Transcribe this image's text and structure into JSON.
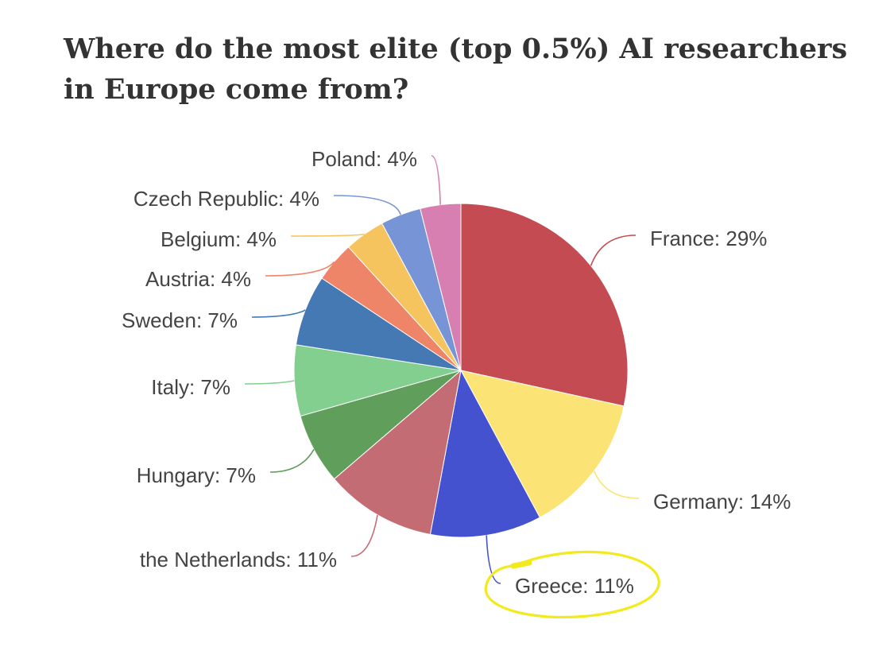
{
  "chart_data": {
    "type": "pie",
    "title": "Where do the most elite (top 0.5%) AI researchers in Europe come from?",
    "slices": [
      {
        "label": "France",
        "value": 29,
        "display": "France: 29%",
        "color": "#c44b51"
      },
      {
        "label": "Germany",
        "value": 14,
        "display": "Germany: 14%",
        "color": "#fbe475"
      },
      {
        "label": "Greece",
        "value": 11,
        "display": "Greece: 11%",
        "color": "#4452cf",
        "highlighted": true
      },
      {
        "label": "the Netherlands",
        "value": 11,
        "display": "the Netherlands: 11%",
        "color": "#c46c73"
      },
      {
        "label": "Hungary",
        "value": 7,
        "display": "Hungary: 7%",
        "color": "#609e5b"
      },
      {
        "label": "Italy",
        "value": 7,
        "display": "Italy: 7%",
        "color": "#82cf8f"
      },
      {
        "label": "Sweden",
        "value": 7,
        "display": "Sweden: 7%",
        "color": "#4479b4"
      },
      {
        "label": "Austria",
        "value": 4,
        "display": "Austria: 4%",
        "color": "#ee8468"
      },
      {
        "label": "Belgium",
        "value": 4,
        "display": "Belgium: 4%",
        "color": "#f6c45f"
      },
      {
        "label": "Czech Republic",
        "value": 4,
        "display": "Czech Republic: 4%",
        "color": "#7794d6"
      },
      {
        "label": "Poland",
        "value": 4,
        "display": "Poland: 4%",
        "color": "#d87fb1"
      }
    ],
    "highlight_color": "#f2ea1c"
  }
}
